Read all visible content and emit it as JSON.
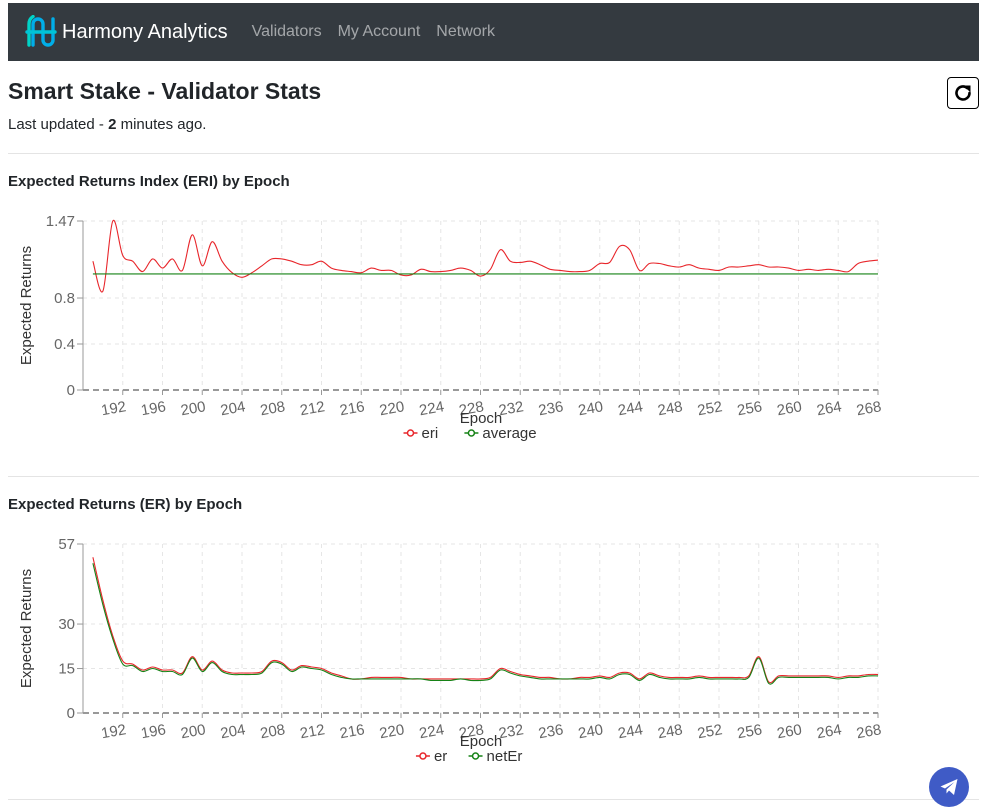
{
  "navbar": {
    "brand": "Harmony Analytics",
    "links": [
      "Validators",
      "My Account",
      "Network"
    ]
  },
  "page": {
    "title": "Smart Stake - Validator Stats",
    "updated_prefix": "Last updated - ",
    "updated_value": "2",
    "updated_suffix": " minutes ago."
  },
  "icons": {
    "brand": "harmony-logo",
    "refresh": "refresh-icon",
    "chat": "telegram-icon"
  },
  "colors": {
    "navbar": "#343a40",
    "series_red": "#e8262b",
    "series_green": "#168216",
    "chat_button": "#3f5bc6"
  },
  "charts": [
    {
      "title": "Expected Returns Index (ERI) by Epoch",
      "chart_data": {
        "type": "line",
        "xlabel": "Epoch",
        "ylabel": "Expected Returns",
        "xlim": [
          188,
          268
        ],
        "ylim": [
          0,
          1.47
        ],
        "y_ticks": [
          0,
          0.4,
          0.8,
          1.47
        ],
        "y_tick_labels": [
          "0",
          "0.4",
          "0.8",
          "1.47"
        ],
        "x_ticks": [
          192,
          196,
          200,
          204,
          208,
          212,
          216,
          220,
          224,
          228,
          232,
          236,
          240,
          244,
          248,
          252,
          256,
          260,
          264,
          268
        ],
        "grid": true,
        "legend": "bottom",
        "series": [
          {
            "name": "eri",
            "color": "#e8262b",
            "x": [
              189,
              190,
              191,
              192,
              193,
              194,
              195,
              196,
              197,
              198,
              199,
              200,
              201,
              202,
              203,
              204,
              205,
              206,
              207,
              208,
              209,
              210,
              211,
              212,
              213,
              214,
              215,
              216,
              217,
              218,
              219,
              220,
              221,
              222,
              223,
              224,
              225,
              226,
              227,
              228,
              229,
              230,
              231,
              232,
              233,
              234,
              235,
              236,
              237,
              238,
              239,
              240,
              241,
              242,
              243,
              244,
              245,
              246,
              247,
              248,
              249,
              250,
              251,
              252,
              253,
              254,
              255,
              256,
              257,
              258,
              259,
              260,
              261,
              262,
              263,
              264,
              265,
              266,
              267,
              268
            ],
            "values": [
              1.12,
              0.86,
              1.47,
              1.17,
              1.12,
              1.03,
              1.14,
              1.06,
              1.14,
              1.04,
              1.35,
              1.08,
              1.29,
              1.12,
              1.02,
              0.98,
              1.02,
              1.08,
              1.14,
              1.14,
              1.12,
              1.09,
              1.09,
              1.12,
              1.06,
              1.04,
              1.03,
              1.02,
              1.06,
              1.04,
              1.04,
              1.0,
              1.0,
              1.05,
              1.03,
              1.03,
              1.04,
              1.06,
              1.04,
              0.99,
              1.05,
              1.22,
              1.12,
              1.11,
              1.12,
              1.09,
              1.05,
              1.04,
              1.03,
              1.03,
              1.04,
              1.1,
              1.11,
              1.25,
              1.22,
              1.04,
              1.1,
              1.1,
              1.08,
              1.07,
              1.09,
              1.06,
              1.05,
              1.04,
              1.07,
              1.07,
              1.08,
              1.09,
              1.07,
              1.07,
              1.06,
              1.04,
              1.05,
              1.04,
              1.05,
              1.04,
              1.03,
              1.1,
              1.12,
              1.13
            ]
          },
          {
            "name": "average",
            "color": "#168216",
            "x": [
              189,
              268
            ],
            "values": [
              1.01,
              1.01
            ]
          }
        ]
      }
    },
    {
      "title": "Expected Returns (ER) by Epoch",
      "chart_data": {
        "type": "line",
        "xlabel": "Epoch",
        "ylabel": "Expected Returns",
        "xlim": [
          188,
          268
        ],
        "ylim": [
          0,
          57
        ],
        "y_ticks": [
          0,
          15,
          30,
          57
        ],
        "y_tick_labels": [
          "0",
          "15",
          "30",
          "57"
        ],
        "x_ticks": [
          192,
          196,
          200,
          204,
          208,
          212,
          216,
          220,
          224,
          228,
          232,
          236,
          240,
          244,
          248,
          252,
          256,
          260,
          264,
          268
        ],
        "grid": true,
        "legend": "bottom",
        "series": [
          {
            "name": "er",
            "color": "#e8262b",
            "x": [
              189,
              190,
              191,
              192,
              193,
              194,
              195,
              196,
              197,
              198,
              199,
              200,
              201,
              202,
              203,
              204,
              205,
              206,
              207,
              208,
              209,
              210,
              211,
              212,
              213,
              214,
              215,
              216,
              217,
              218,
              219,
              220,
              221,
              222,
              223,
              224,
              225,
              226,
              227,
              228,
              229,
              230,
              231,
              232,
              233,
              234,
              235,
              236,
              237,
              238,
              239,
              240,
              241,
              242,
              243,
              244,
              245,
              246,
              247,
              248,
              249,
              250,
              251,
              252,
              253,
              254,
              255,
              256,
              257,
              258,
              259,
              260,
              261,
              262,
              263,
              264,
              265,
              266,
              267,
              268
            ],
            "values": [
              52.5,
              38,
              26,
              17.5,
              16.5,
              14.5,
              15.5,
              14.5,
              14.5,
              13.5,
              19,
              14.5,
              17.5,
              14.5,
              13.5,
              13.5,
              13.5,
              14,
              17.5,
              17,
              14.5,
              16,
              15.5,
              15,
              13.5,
              12.5,
              11.5,
              11.5,
              12,
              12,
              12,
              12,
              11.5,
              11.5,
              11.5,
              11.5,
              11.5,
              11.5,
              11.5,
              11.5,
              12,
              15,
              14,
              13,
              12.5,
              12,
              12,
              11.5,
              11.5,
              12,
              12,
              12.5,
              12,
              13.5,
              13.5,
              11.5,
              13.5,
              12.5,
              12,
              12,
              12,
              12.5,
              12,
              12,
              12,
              12,
              12.5,
              19,
              10.5,
              12.5,
              12.5,
              12.5,
              12.5,
              12.5,
              12.5,
              12,
              12.5,
              12.5,
              13,
              13
            ]
          },
          {
            "name": "netEr",
            "color": "#168216",
            "x": [
              189,
              190,
              191,
              192,
              193,
              194,
              195,
              196,
              197,
              198,
              199,
              200,
              201,
              202,
              203,
              204,
              205,
              206,
              207,
              208,
              209,
              210,
              211,
              212,
              213,
              214,
              215,
              216,
              217,
              218,
              219,
              220,
              221,
              222,
              223,
              224,
              225,
              226,
              227,
              228,
              229,
              230,
              231,
              232,
              233,
              234,
              235,
              236,
              237,
              238,
              239,
              240,
              241,
              242,
              243,
              244,
              245,
              246,
              247,
              248,
              249,
              250,
              251,
              252,
              253,
              254,
              255,
              256,
              257,
              258,
              259,
              260,
              261,
              262,
              263,
              264,
              265,
              266,
              267,
              268
            ],
            "values": [
              50.5,
              36.5,
              25,
              16.5,
              16,
              14,
              15,
              14,
              14,
              13,
              18.5,
              14,
              17,
              14,
              13,
              13,
              13,
              13.5,
              17,
              16.5,
              14,
              15.5,
              15,
              14.5,
              13,
              12,
              11.5,
              11.5,
              11.5,
              11.5,
              11.5,
              11.5,
              11.5,
              11.5,
              11,
              11,
              11,
              11.5,
              11,
              11,
              11.5,
              14.5,
              13.5,
              12.5,
              12,
              11.5,
              11.5,
              11.5,
              11.5,
              11.5,
              11.5,
              12,
              11.5,
              13,
              13,
              11,
              13,
              12,
              11.5,
              11.5,
              11.5,
              12,
              11.5,
              11.5,
              11.5,
              11.5,
              12,
              18.5,
              10,
              12,
              12,
              12,
              12,
              12,
              12,
              11.5,
              12,
              12,
              12.5,
              12.5
            ]
          }
        ]
      }
    }
  ]
}
